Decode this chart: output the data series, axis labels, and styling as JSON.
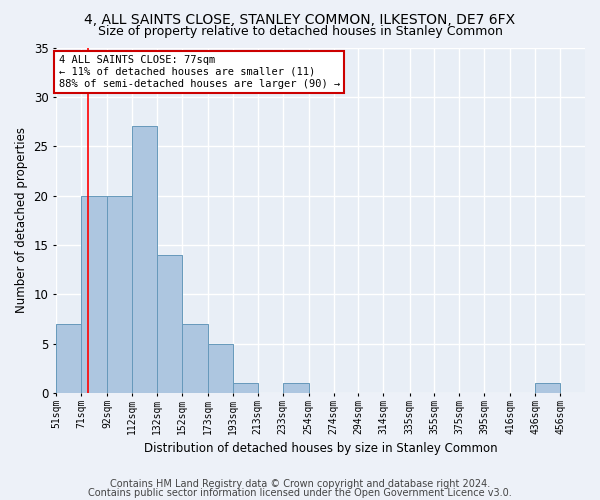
{
  "title1": "4, ALL SAINTS CLOSE, STANLEY COMMON, ILKESTON, DE7 6FX",
  "title2": "Size of property relative to detached houses in Stanley Common",
  "xlabel": "Distribution of detached houses by size in Stanley Common",
  "ylabel": "Number of detached properties",
  "footer1": "Contains HM Land Registry data © Crown copyright and database right 2024.",
  "footer2": "Contains public sector information licensed under the Open Government Licence v3.0.",
  "annotation_line1": "4 ALL SAINTS CLOSE: 77sqm",
  "annotation_line2": "← 11% of detached houses are smaller (11)",
  "annotation_line3": "88% of semi-detached houses are larger (90) →",
  "bar_edges": [
    51,
    71,
    92,
    112,
    132,
    152,
    173,
    193,
    213,
    233,
    254,
    274,
    294,
    314,
    335,
    355,
    375,
    395,
    416,
    436,
    456
  ],
  "bar_heights": [
    7,
    20,
    20,
    27,
    14,
    7,
    5,
    1,
    0,
    1,
    0,
    0,
    0,
    0,
    0,
    0,
    0,
    0,
    0,
    1
  ],
  "bar_color": "#adc6e0",
  "bar_edge_color": "#6699bb",
  "red_line_x": 77,
  "ylim": [
    0,
    35
  ],
  "yticks": [
    0,
    5,
    10,
    15,
    20,
    25,
    30,
    35
  ],
  "bg_color": "#e8eef6",
  "grid_color": "#ffffff",
  "title1_fontsize": 10,
  "title2_fontsize": 9,
  "annotation_box_color": "#ffffff",
  "annotation_box_edge": "#cc0000",
  "annotation_fontsize": 7.5,
  "xlabel_fontsize": 8.5,
  "ylabel_fontsize": 8.5,
  "footer_fontsize": 7.0
}
